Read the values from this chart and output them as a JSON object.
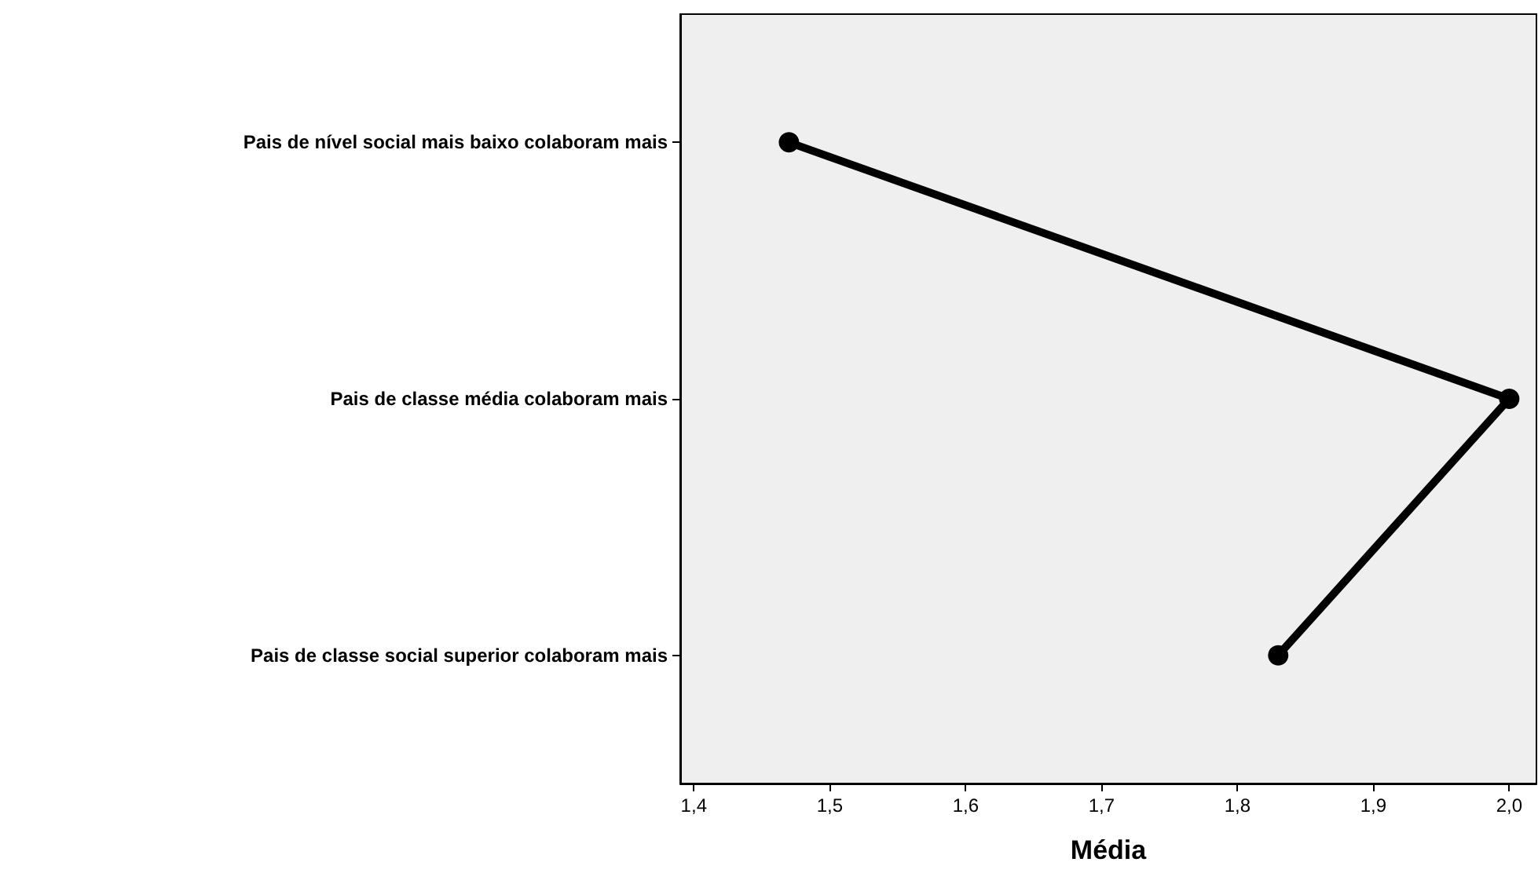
{
  "chart_data": {
    "type": "line",
    "orientation": "horizontal",
    "xlabel": "Média",
    "categories": [
      "Pais de nível social mais baixo colaboram mais",
      "Pais de classe média colaboram mais",
      "Pais de classe social superior colaboram mais"
    ],
    "values": [
      1.47,
      2.0,
      1.83
    ],
    "color": "#000000",
    "xlim": [
      1.39,
      2.02
    ],
    "xticks": [
      {
        "value": 1.4,
        "label": "1,4"
      },
      {
        "value": 1.5,
        "label": "1,5"
      },
      {
        "value": 1.6,
        "label": "1,6"
      },
      {
        "value": 1.7,
        "label": "1,7"
      },
      {
        "value": 1.8,
        "label": "1,8"
      },
      {
        "value": 1.9,
        "label": "1,9"
      },
      {
        "value": 2.0,
        "label": "2,0"
      }
    ],
    "grid": false,
    "marker": "circle",
    "line_style": "solid"
  }
}
